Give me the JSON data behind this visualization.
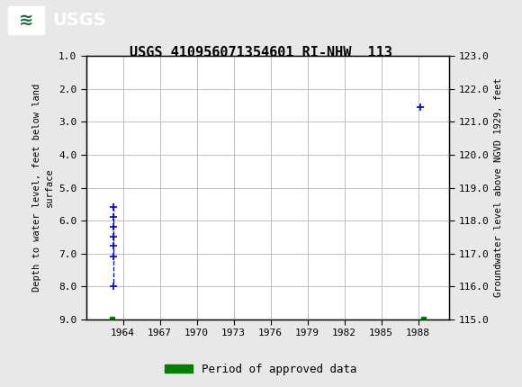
{
  "title": "USGS 410956071354601 RI-NHW  113",
  "ylabel_left": "Depth to water level, feet below land\nsurface",
  "ylabel_right": "Groundwater level above NGVD 1929, feet",
  "xlim": [
    1961.0,
    1990.5
  ],
  "ylim_left": [
    9.0,
    1.0
  ],
  "ylim_right": [
    115.0,
    123.0
  ],
  "xticks": [
    1964,
    1967,
    1970,
    1973,
    1976,
    1979,
    1982,
    1985,
    1988
  ],
  "yticks_left": [
    1.0,
    2.0,
    3.0,
    4.0,
    5.0,
    6.0,
    7.0,
    8.0,
    9.0
  ],
  "yticks_right": [
    123.0,
    122.0,
    121.0,
    120.0,
    119.0,
    118.0,
    117.0,
    116.0,
    115.0
  ],
  "blue_scatter_x": [
    1963.2,
    1963.2,
    1963.2,
    1963.2,
    1963.2,
    1963.2,
    1963.2
  ],
  "blue_scatter_y": [
    5.6,
    5.9,
    6.2,
    6.5,
    6.75,
    7.1,
    8.0
  ],
  "blue_single_x": [
    1988.2
  ],
  "blue_single_y": [
    2.55
  ],
  "green_marker1_x": 1963.1,
  "green_marker1_y": 9.0,
  "green_marker2_x": 1988.4,
  "green_marker2_y": 9.0,
  "green_bar_color": "#008000",
  "blue_color": "#0000cc",
  "background_color": "#e8e8e8",
  "plot_bg_color": "#ffffff",
  "grid_color": "#c0c0c0",
  "header_color": "#1a6b3c",
  "legend_label": "Period of approved data",
  "font_family": "monospace"
}
